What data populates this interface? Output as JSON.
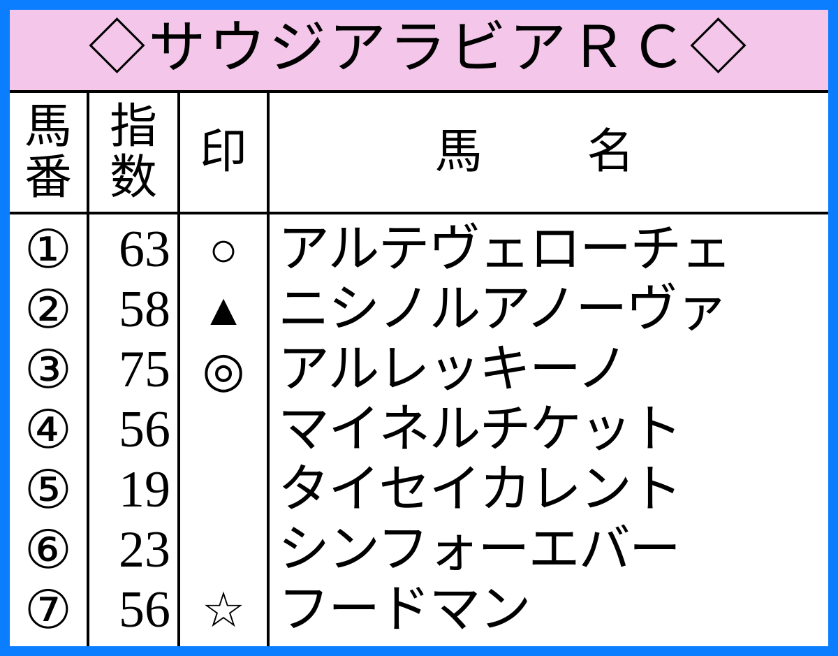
{
  "title": "◇サウジアラビアＲＣ◇",
  "headers": {
    "num": "馬番",
    "idx": "指数",
    "mark": "印",
    "name": "馬　名"
  },
  "rows": [
    {
      "num": "①",
      "idx": "63",
      "mark": "○",
      "name": "アルテヴェローチェ"
    },
    {
      "num": "②",
      "idx": "58",
      "mark": "▲",
      "name": "ニシノルアノーヴァ"
    },
    {
      "num": "③",
      "idx": "75",
      "mark": "◎",
      "name": "アルレッキーノ"
    },
    {
      "num": "④",
      "idx": "56",
      "mark": "",
      "name": "マイネルチケット"
    },
    {
      "num": "⑤",
      "idx": "19",
      "mark": "",
      "name": "タイセイカレント"
    },
    {
      "num": "⑥",
      "idx": "23",
      "mark": "",
      "name": "シンフォーエバー"
    },
    {
      "num": "⑦",
      "idx": "56",
      "mark": "☆",
      "name": "フードマン"
    }
  ],
  "style": {
    "border_color": "#0b7dff",
    "title_bg": "#f3c6ea",
    "text_color": "#000000",
    "grid_color": "#000000",
    "bg_color": "#ffffff"
  }
}
